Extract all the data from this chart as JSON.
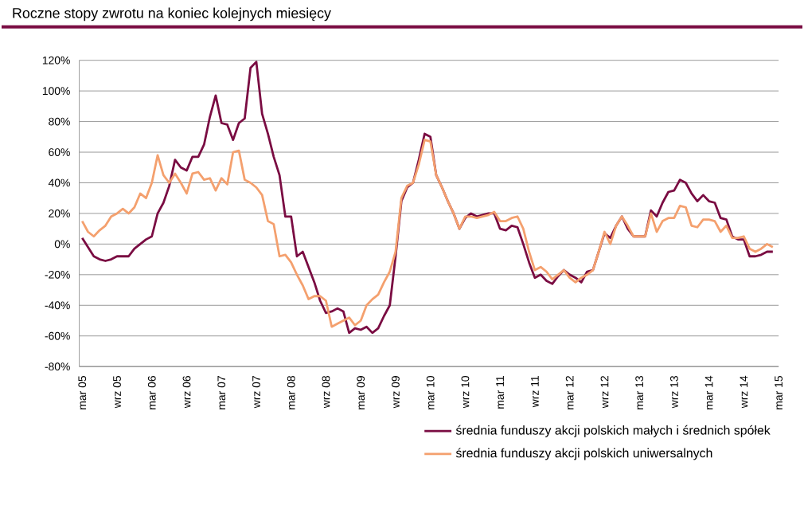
{
  "chart_data": {
    "type": "line",
    "title": "Roczne stopy zwrotu na koniec kolejnych miesięcy",
    "categories": [
      "mar 05",
      null,
      null,
      null,
      null,
      null,
      "wrz 05",
      null,
      null,
      null,
      null,
      null,
      "mar 06",
      null,
      null,
      null,
      null,
      null,
      "wrz 06",
      null,
      null,
      null,
      null,
      null,
      "mar 07",
      null,
      null,
      null,
      null,
      null,
      "wrz 07",
      null,
      null,
      null,
      null,
      null,
      "mar 08",
      null,
      null,
      null,
      null,
      null,
      "wrz 08",
      null,
      null,
      null,
      null,
      null,
      "mar 09",
      null,
      null,
      null,
      null,
      null,
      "wrz 09",
      null,
      null,
      null,
      null,
      null,
      "mar 10",
      null,
      null,
      null,
      null,
      null,
      "wrz 10",
      null,
      null,
      null,
      null,
      null,
      "mar 11",
      null,
      null,
      null,
      null,
      null,
      "wrz 11",
      null,
      null,
      null,
      null,
      null,
      "mar 12",
      null,
      null,
      null,
      null,
      null,
      "wrz 12",
      null,
      null,
      null,
      null,
      null,
      "mar 13",
      null,
      null,
      null,
      null,
      null,
      "wrz 13",
      null,
      null,
      null,
      null,
      null,
      "mar 14",
      null,
      null,
      null,
      null,
      null,
      "wrz 14",
      null,
      null,
      null,
      null,
      null,
      "mar 15"
    ],
    "series": [
      {
        "name": "średnia funduszy akcji polskich małych i średnich spółek",
        "color": "#7a0c42",
        "values": [
          4,
          -2,
          -8,
          -10,
          -11,
          -10,
          -8,
          -8,
          -8,
          -3,
          0,
          3,
          5,
          20,
          27,
          38,
          55,
          50,
          48,
          57,
          57,
          65,
          83,
          97,
          79,
          78,
          68,
          79,
          82,
          115,
          119,
          85,
          72,
          57,
          45,
          18,
          18,
          -8,
          -5,
          -15,
          -25,
          -37,
          -45,
          -44,
          -42,
          -44,
          -58,
          -55,
          -56,
          -54,
          -58,
          -55,
          -47,
          -40,
          -8,
          28,
          37,
          40,
          55,
          72,
          70,
          45,
          37,
          28,
          20,
          10,
          17,
          20,
          18,
          19,
          20,
          20,
          10,
          9,
          12,
          11,
          0,
          -12,
          -22,
          -20,
          -24,
          -26,
          -21,
          -17,
          -20,
          -22,
          -25,
          -18,
          -17,
          -5,
          7,
          4,
          12,
          18,
          10,
          5,
          5,
          5,
          22,
          18,
          27,
          34,
          35,
          42,
          40,
          33,
          28,
          32,
          28,
          27,
          17,
          16,
          5,
          3,
          3,
          -8,
          -8,
          -7,
          -5,
          -5,
          null
        ]
      },
      {
        "name": "średnia funduszy akcji polskich uniwersalnych",
        "color": "#f4a06e",
        "values": [
          15,
          8,
          5,
          9,
          12,
          18,
          20,
          23,
          20,
          24,
          33,
          30,
          40,
          58,
          45,
          40,
          46,
          40,
          33,
          46,
          47,
          42,
          43,
          35,
          43,
          39,
          60,
          61,
          42,
          40,
          37,
          32,
          15,
          13,
          -8,
          -7,
          -12,
          -20,
          -27,
          -36,
          -34,
          -34,
          -37,
          -54,
          -52,
          -50,
          -48,
          -53,
          -50,
          -40,
          -36,
          -33,
          -25,
          -18,
          -5,
          30,
          38,
          40,
          52,
          68,
          67,
          45,
          37,
          28,
          20,
          10,
          18,
          18,
          17,
          18,
          19,
          21,
          15,
          15,
          17,
          18,
          10,
          -5,
          -17,
          -15,
          -18,
          -23,
          -20,
          -17,
          -22,
          -25,
          -22,
          -20,
          -17,
          -5,
          8,
          0,
          12,
          18,
          12,
          5,
          5,
          5,
          20,
          8,
          15,
          17,
          17,
          25,
          24,
          12,
          11,
          16,
          16,
          15,
          8,
          12,
          4,
          4,
          5,
          -3,
          -5,
          -3,
          0,
          -2,
          null
        ]
      }
    ],
    "ylim": [
      -80,
      120
    ],
    "yticks": [
      {
        "value": -80,
        "label": "-80%"
      },
      {
        "value": -60,
        "label": "-60%"
      },
      {
        "value": -40,
        "label": "-40%"
      },
      {
        "value": -20,
        "label": "-20%"
      },
      {
        "value": 0,
        "label": "0%"
      },
      {
        "value": 20,
        "label": "20%"
      },
      {
        "value": 40,
        "label": "40%"
      },
      {
        "value": 60,
        "label": "60%"
      },
      {
        "value": 80,
        "label": "80%"
      },
      {
        "value": 100,
        "label": "100%"
      },
      {
        "value": 120,
        "label": "120%"
      }
    ],
    "grid": "y",
    "legend": "bottom",
    "marker": "none",
    "line_style": "solid"
  }
}
